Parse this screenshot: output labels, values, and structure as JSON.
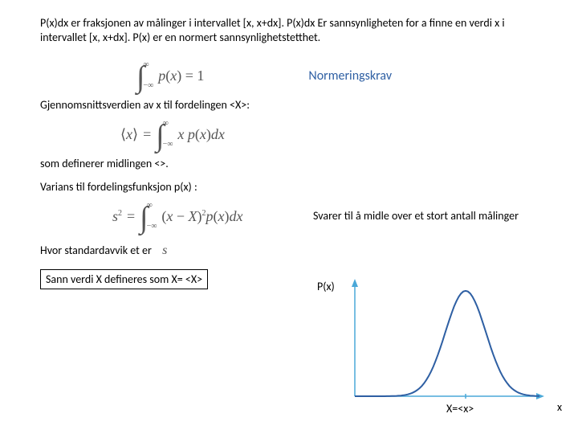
{
  "intro": {
    "text": "P(x)dx  er fraksjonen av målinger  i intervallet  [x, x+dx].  P(x)dx  Er sannsynligheten for a finne  en verdi x i intervallet [x, x+dx].   P(x) er en normert  sannsynlighetstetthet."
  },
  "equations": {
    "eq1": "∫−∞∞ p(x) = 1",
    "eq2": "⟨x⟩ = ∫−∞∞ x p(x) dx",
    "eq3": "s² = ∫−∞∞ (x − X)² p(x) dx"
  },
  "labels": {
    "normering": "Normeringskrav",
    "gjennom": "Gjennomsnittsverdien  av x til fordelingen <X>:",
    "svarer": "Svarer til  å midle over et stort antall   målinger",
    "som_def": "som  definerer  midlingen <>.",
    "varians": "Varians  til fordelingsfunksjon p(x)  :",
    "hvor": "Hvor standardavvik et er",
    "std_sym": "s",
    "sann": "Sann verdi  X defineres som X= <X>",
    "px": "P(x)",
    "xeq": "X=<x>",
    "xaxis": "x"
  },
  "chart": {
    "axis_color": "#4aa8d8",
    "curve_color": "#2e5fa3",
    "curve_width": 2,
    "axis_width": 1.5,
    "bg": "#ffffff",
    "mean_x": 0.6,
    "sigma": 0.11,
    "height": 1.0
  },
  "colors": {
    "text": "#000000",
    "blue_label": "#2e5fa3",
    "eq_gray": "#555555"
  }
}
